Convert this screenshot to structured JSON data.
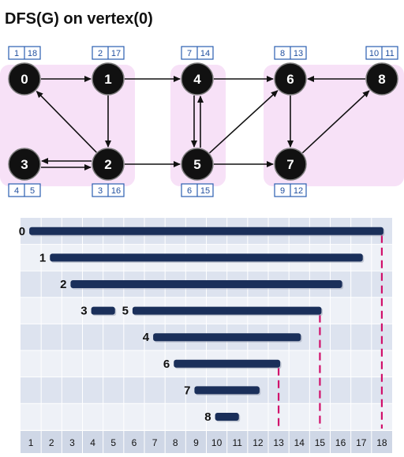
{
  "title": "DFS(G) on vertex(0)",
  "colors": {
    "node": "#111111",
    "node_ring": "#7a7a7a",
    "scc_region": "#f7e1f7",
    "edge": "#111111",
    "time_box_border": "#2a5db0",
    "time_text": "#1f4e9e",
    "bar": "#1a2f5a",
    "row_dark": "#dde3ef",
    "row_light": "#eef1f7",
    "axis_bg": "#cfd7e6",
    "finish_marker": "#d1106b"
  },
  "vertices": [
    {
      "id": "0",
      "label": "0",
      "discover": 1,
      "finish": 18
    },
    {
      "id": "1",
      "label": "1",
      "discover": 2,
      "finish": 17
    },
    {
      "id": "2",
      "label": "2",
      "discover": 3,
      "finish": 16
    },
    {
      "id": "3",
      "label": "3",
      "discover": 4,
      "finish": 5
    },
    {
      "id": "4",
      "label": "4",
      "discover": 7,
      "finish": 14
    },
    {
      "id": "5",
      "label": "5",
      "discover": 6,
      "finish": 15
    },
    {
      "id": "6",
      "label": "6",
      "discover": 8,
      "finish": 13
    },
    {
      "id": "7",
      "label": "7",
      "discover": 9,
      "finish": 12
    },
    {
      "id": "8",
      "label": "8",
      "discover": 10,
      "finish": 11
    }
  ],
  "edges": [
    {
      "from": "0",
      "to": "1"
    },
    {
      "from": "1",
      "to": "2"
    },
    {
      "from": "2",
      "to": "0"
    },
    {
      "from": "2",
      "to": "3"
    },
    {
      "from": "3",
      "to": "2"
    },
    {
      "from": "1",
      "to": "4"
    },
    {
      "from": "2",
      "to": "5"
    },
    {
      "from": "4",
      "to": "5"
    },
    {
      "from": "5",
      "to": "4"
    },
    {
      "from": "4",
      "to": "6"
    },
    {
      "from": "5",
      "to": "6"
    },
    {
      "from": "5",
      "to": "7"
    },
    {
      "from": "6",
      "to": "7"
    },
    {
      "from": "7",
      "to": "8"
    },
    {
      "from": "8",
      "to": "6"
    }
  ],
  "components": [
    [
      "0",
      "1",
      "2",
      "3"
    ],
    [
      "4",
      "5"
    ],
    [
      "6",
      "7",
      "8"
    ]
  ],
  "timeline": {
    "axis_ticks": [
      1,
      2,
      3,
      4,
      5,
      6,
      7,
      8,
      9,
      10,
      11,
      12,
      13,
      14,
      15,
      16,
      17,
      18
    ],
    "rows": [
      {
        "labels": [
          {
            "text": "0",
            "vertex": "0"
          }
        ]
      },
      {
        "labels": [
          {
            "text": "1",
            "vertex": "1"
          }
        ]
      },
      {
        "labels": [
          {
            "text": "2",
            "vertex": "2"
          }
        ]
      },
      {
        "labels": [
          {
            "text": "3",
            "vertex": "3"
          },
          {
            "text": "5",
            "vertex": "5"
          }
        ]
      },
      {
        "labels": [
          {
            "text": "4",
            "vertex": "4"
          }
        ]
      },
      {
        "labels": [
          {
            "text": "6",
            "vertex": "6"
          }
        ]
      },
      {
        "labels": [
          {
            "text": "7",
            "vertex": "7"
          }
        ]
      },
      {
        "labels": [
          {
            "text": "8",
            "vertex": "8"
          }
        ]
      }
    ],
    "finish_markers": [
      13,
      15,
      18
    ]
  }
}
